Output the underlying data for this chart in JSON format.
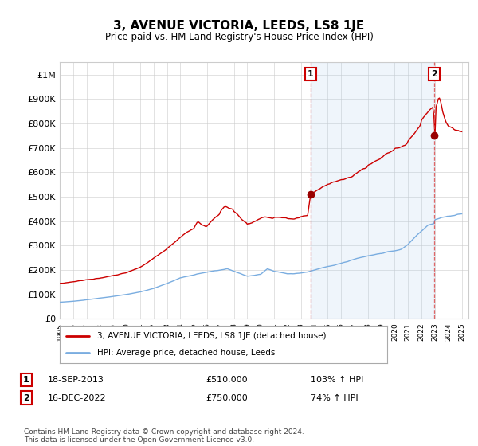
{
  "title": "3, AVENUE VICTORIA, LEEDS, LS8 1JE",
  "subtitle": "Price paid vs. HM Land Registry's House Price Index (HPI)",
  "ylim": [
    0,
    1050000
  ],
  "yticks": [
    0,
    100000,
    200000,
    300000,
    400000,
    500000,
    600000,
    700000,
    800000,
    900000,
    1000000
  ],
  "ytick_labels": [
    "£0",
    "£100K",
    "£200K",
    "£300K",
    "£400K",
    "£500K",
    "£600K",
    "£700K",
    "£800K",
    "£900K",
    "£1M"
  ],
  "red_line_color": "#cc0000",
  "blue_line_color": "#7aade0",
  "shaded_color": "#ddeeff",
  "annotation_box_color": "#cc0000",
  "sale1_x": 2013.72,
  "sale1_y": 510000,
  "sale2_x": 2022.96,
  "sale2_y": 750000,
  "vline1_x": 2013.72,
  "vline2_x": 2022.96,
  "legend_label_red": "3, AVENUE VICTORIA, LEEDS, LS8 1JE (detached house)",
  "legend_label_blue": "HPI: Average price, detached house, Leeds",
  "note1_label": "1",
  "note1_date": "18-SEP-2013",
  "note1_price": "£510,000",
  "note1_hpi": "103% ↑ HPI",
  "note2_label": "2",
  "note2_date": "16-DEC-2022",
  "note2_price": "£750,000",
  "note2_hpi": "74% ↑ HPI",
  "footer": "Contains HM Land Registry data © Crown copyright and database right 2024.\nThis data is licensed under the Open Government Licence v3.0.",
  "xlim_left": 1995.0,
  "xlim_right": 2025.5
}
